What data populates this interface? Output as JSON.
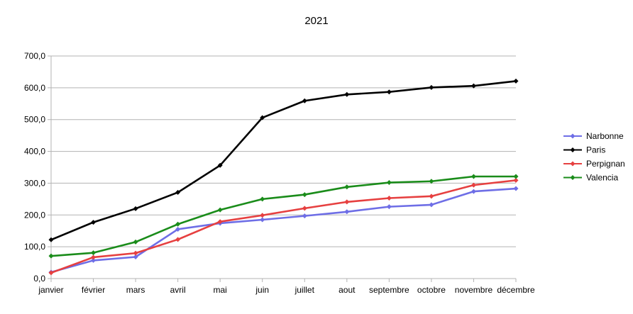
{
  "chart_data": {
    "type": "line",
    "title": "2021",
    "xlabel": "",
    "ylabel": "",
    "categories": [
      "janvier",
      "février",
      "mars",
      "avril",
      "mai",
      "juin",
      "juillet",
      "aout",
      "septembre",
      "octobre",
      "novembre",
      "décembre"
    ],
    "ylim": [
      0,
      700
    ],
    "yticks": [
      0,
      100,
      200,
      300,
      400,
      500,
      600,
      700
    ],
    "ytick_labels": [
      "0,0",
      "100,0",
      "200,0",
      "300,0",
      "400,0",
      "500,0",
      "600,0",
      "700,0"
    ],
    "grid": true,
    "legend_position": "right",
    "series": [
      {
        "name": "Narbonne",
        "color": "#6e6ee6",
        "values": [
          20,
          57,
          68,
          155,
          174,
          185,
          197,
          210,
          226,
          232,
          274,
          283
        ]
      },
      {
        "name": "Paris",
        "color": "#000000",
        "values": [
          122,
          177,
          220,
          271,
          356,
          506,
          559,
          579,
          587,
          601,
          606,
          621
        ]
      },
      {
        "name": "Perpignan",
        "color": "#e64040",
        "values": [
          18,
          67,
          80,
          123,
          179,
          199,
          221,
          241,
          253,
          259,
          294,
          309
        ]
      },
      {
        "name": "Valencia",
        "color": "#1a8c1a",
        "values": [
          71,
          81,
          115,
          171,
          216,
          250,
          264,
          288,
          302,
          306,
          321,
          321
        ]
      }
    ]
  }
}
